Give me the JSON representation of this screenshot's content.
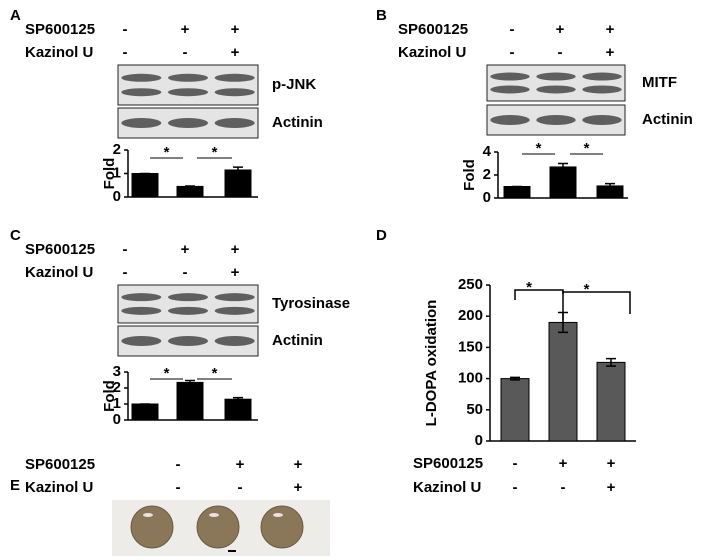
{
  "panels": [
    {
      "letter": "A",
      "conditions": [
        {
          "name": "SP600125",
          "signs": [
            "-",
            "+",
            "+"
          ]
        },
        {
          "name": "Kazinol U",
          "signs": [
            "-",
            "-",
            "+"
          ]
        }
      ],
      "blots": [
        "p-JNK",
        "Actinin"
      ]
    },
    {
      "letter": "B",
      "conditions": [
        {
          "name": "SP600125",
          "signs": [
            "-",
            "+",
            "+"
          ]
        },
        {
          "name": "Kazinol U",
          "signs": [
            "-",
            "-",
            "+"
          ]
        }
      ],
      "blots": [
        "MITF",
        "Actinin"
      ]
    },
    {
      "letter": "C",
      "conditions": [
        {
          "name": "SP600125",
          "signs": [
            "-",
            "+",
            "+"
          ]
        },
        {
          "name": "Kazinol U",
          "signs": [
            "-",
            "-",
            "+"
          ]
        }
      ],
      "blots": [
        "Tyrosinase",
        "Actinin"
      ]
    },
    {
      "letter": "D",
      "conditions": [
        {
          "name": "SP600125",
          "signs": [
            "-",
            "+",
            "+"
          ]
        },
        {
          "name": "Kazinol U",
          "signs": [
            "-",
            "-",
            "+"
          ]
        }
      ],
      "blots": []
    },
    {
      "letter": "E",
      "conditions": [
        {
          "name": "SP600125",
          "signs": [
            "-",
            "+",
            "+"
          ]
        },
        {
          "name": "Kazinol U",
          "signs": [
            "-",
            "-",
            "+"
          ]
        }
      ],
      "blots": []
    }
  ],
  "chart_data": [
    {
      "type": "bar",
      "ylabel": "Fold",
      "values": [
        1,
        0.45,
        1.15
      ],
      "errors": [
        0,
        0.02,
        0.12
      ],
      "ylim": [
        0,
        2
      ],
      "yticks": [
        0,
        1,
        2
      ],
      "color": "#000000",
      "annotations": [
        "*",
        "*"
      ]
    },
    {
      "type": "bar",
      "ylabel": "Fold",
      "values": [
        1,
        2.7,
        1.05
      ],
      "errors": [
        0,
        0.3,
        0.2
      ],
      "ylim": [
        0,
        4
      ],
      "yticks": [
        0,
        2,
        4
      ],
      "color": "#000000",
      "annotations": [
        "*",
        "*"
      ]
    },
    {
      "type": "bar",
      "ylabel": "Fold",
      "values": [
        1,
        2.35,
        1.3
      ],
      "errors": [
        0,
        0.12,
        0.1
      ],
      "ylim": [
        0,
        3
      ],
      "yticks": [
        0,
        1,
        2,
        3
      ],
      "color": "#000000",
      "annotations": [
        "*",
        "*"
      ]
    },
    {
      "type": "bar",
      "ylabel": "L-DOPA oxidation",
      "values": [
        100,
        190,
        126
      ],
      "errors": [
        2,
        16,
        6
      ],
      "ylim": [
        0,
        250
      ],
      "yticks": [
        0,
        50,
        100,
        150,
        200,
        250
      ],
      "color": "#595959",
      "annotations": [
        "*",
        "*"
      ]
    }
  ]
}
